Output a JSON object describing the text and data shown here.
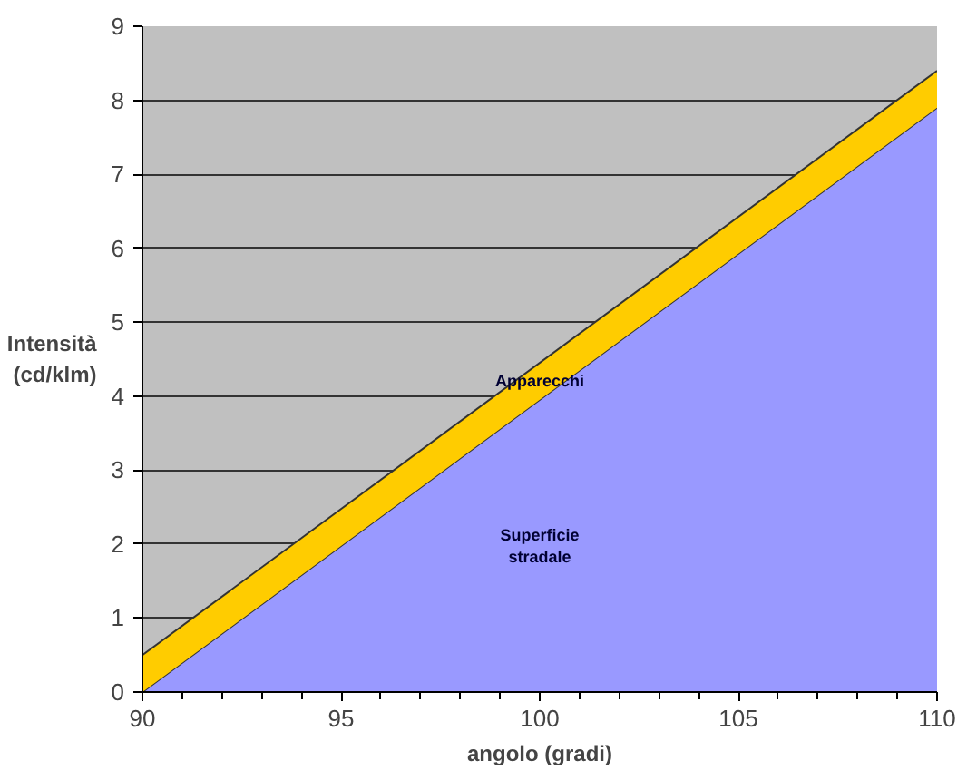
{
  "chart_data": {
    "type": "area",
    "stacked": true,
    "xlabel": "angolo (gradi)",
    "ylabel": "Intensità (cd/klm)",
    "x": [
      90,
      110
    ],
    "series": [
      {
        "name": "Superficie stradale",
        "color": "#9999ff",
        "values": [
          0,
          7.9
        ]
      },
      {
        "name": "Apparecchi",
        "color": "#ffcc00",
        "values": [
          0.5,
          0.5
        ]
      }
    ],
    "xlim": [
      90,
      110
    ],
    "xticks": [
      90,
      95,
      100,
      105,
      110
    ],
    "ylim": [
      0,
      9
    ],
    "yticks": [
      0,
      1,
      2,
      3,
      4,
      5,
      6,
      7,
      8,
      9
    ],
    "grid": "y"
  }
}
